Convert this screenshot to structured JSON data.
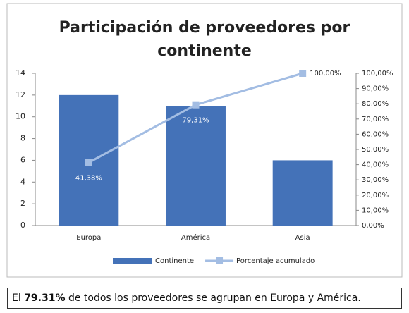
{
  "chart_data": {
    "type": "bar",
    "title": [
      "Participación de proveedores por",
      "continente"
    ],
    "categories": [
      "Europa",
      "América",
      "Asia"
    ],
    "series": [
      {
        "name": "Continente",
        "type": "bar",
        "color": "#4472b8",
        "values": [
          12,
          11,
          6
        ]
      },
      {
        "name": "Porcentaje acumulado",
        "type": "line",
        "axis": "y2",
        "color": "#a3bde3",
        "values": [
          41.38,
          79.31,
          100
        ],
        "value_labels": [
          "41,38%",
          "79,31%",
          "100,00%"
        ]
      }
    ],
    "ylim": [
      0,
      14
    ],
    "yticks": [
      0,
      2,
      4,
      6,
      8,
      10,
      12,
      14
    ],
    "y2lim": [
      0,
      100
    ],
    "y2ticks": [
      {
        "value": 0,
        "label": "0,00%"
      },
      {
        "value": 10,
        "label": "10,00%"
      },
      {
        "value": 20,
        "label": "20,00%"
      },
      {
        "value": 30,
        "label": "30,00%"
      },
      {
        "value": 40,
        "label": "40,00%"
      },
      {
        "value": 50,
        "label": "50,00%"
      },
      {
        "value": 60,
        "label": "60,00%"
      },
      {
        "value": 70,
        "label": "70,00%"
      },
      {
        "value": 80,
        "label": "80,00%"
      },
      {
        "value": 90,
        "label": "90,00%"
      },
      {
        "value": 100,
        "label": "100,00%"
      }
    ],
    "grid": false,
    "legend": "bottom"
  },
  "caption": {
    "before": "El ",
    "highlight": "79.31%",
    "after": " de todos los proveedores se agrupan en Europa y América."
  }
}
